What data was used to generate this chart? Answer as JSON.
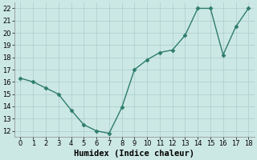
{
  "x": [
    0,
    1,
    2,
    3,
    4,
    5,
    6,
    7,
    8,
    9,
    10,
    11,
    12,
    13,
    14,
    15,
    16,
    17,
    18
  ],
  "y": [
    16.3,
    16.0,
    15.5,
    15.0,
    13.7,
    12.5,
    12.0,
    11.8,
    13.9,
    17.0,
    17.8,
    18.4,
    18.6,
    19.8,
    22.0,
    22.0,
    18.2,
    20.5,
    22.0
  ],
  "line_color": "#2e7d6e",
  "marker_color": "#2e7d6e",
  "bg_color": "#cce8e4",
  "grid_color": "#aacccc",
  "xlabel": "Humidex (Indice chaleur)",
  "xlabel_fontsize": 7.5,
  "tick_fontsize": 6,
  "ylim": [
    11.5,
    22.5
  ],
  "xlim": [
    -0.5,
    18.5
  ],
  "yticks": [
    12,
    13,
    14,
    15,
    16,
    17,
    18,
    19,
    20,
    21,
    22
  ],
  "xticks": [
    0,
    1,
    2,
    3,
    4,
    5,
    6,
    7,
    8,
    9,
    10,
    11,
    12,
    13,
    14,
    15,
    16,
    17,
    18
  ]
}
